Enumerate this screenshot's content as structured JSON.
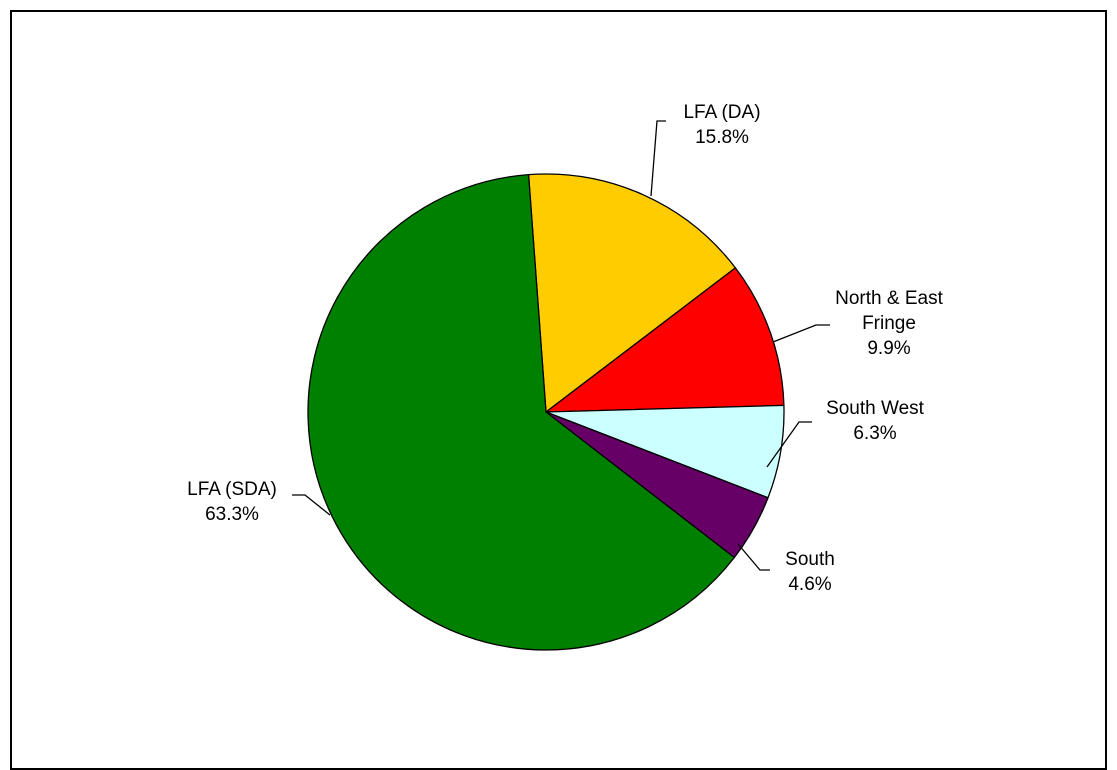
{
  "chart_data": {
    "type": "pie",
    "slices": [
      {
        "name": "LFA (DA)",
        "label_lines": [
          "LFA (DA)"
        ],
        "value": 15.8,
        "pct_label": "15.8%",
        "color": "#FFCC00"
      },
      {
        "name": "North & East Fringe",
        "label_lines": [
          "North & East",
          "Fringe"
        ],
        "value": 9.9,
        "pct_label": "9.9%",
        "color": "#FF0000"
      },
      {
        "name": "South West",
        "label_lines": [
          "South West"
        ],
        "value": 6.3,
        "pct_label": "6.3%",
        "color": "#CCFFFF"
      },
      {
        "name": "South",
        "label_lines": [
          "South"
        ],
        "value": 4.6,
        "pct_label": "4.6%",
        "color": "#660066"
      },
      {
        "name": "LFA (SDA)",
        "label_lines": [
          "LFA (SDA)"
        ],
        "value": 63.3,
        "pct_label": "63.3%",
        "color": "#008000"
      }
    ]
  }
}
